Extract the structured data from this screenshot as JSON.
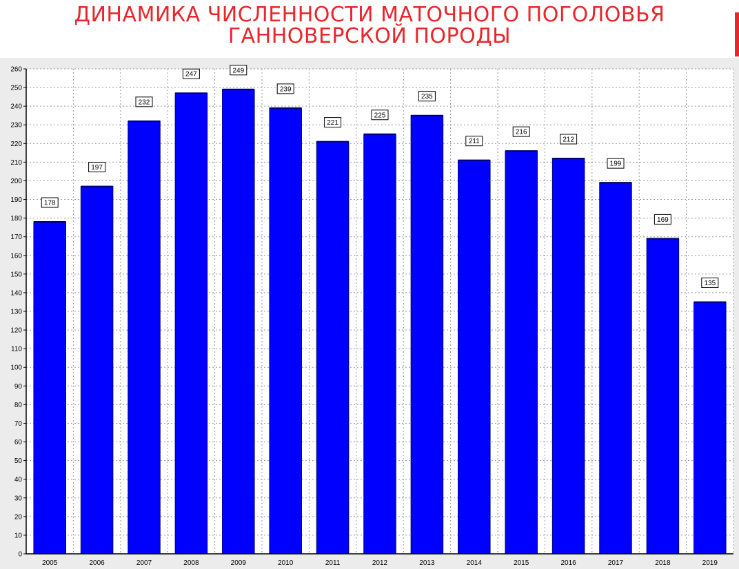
{
  "slide": {
    "title_line1": "ДИНАМИКА ЧИСЛЕННОСТИ МАТОЧНОГО ПОГОЛОВЬЯ",
    "title_line2": "ГАННОВЕРСКОЙ ПОРОДЫ"
  },
  "colors": {
    "title": "#e8262b",
    "bar": "#0000ff",
    "bar_outline": "#00007a",
    "plot_background": "#ffffff",
    "panel_background": "#ececec",
    "grid": "#9a9a9a"
  },
  "chart_data": {
    "type": "bar",
    "title": "",
    "xlabel": "",
    "ylabel": "",
    "categories": [
      "2005",
      "2006",
      "2007",
      "2008",
      "2009",
      "2010",
      "2011",
      "2012",
      "2013",
      "2014",
      "2015",
      "2016",
      "2017",
      "2018",
      "2019"
    ],
    "values": [
      178,
      197,
      232,
      247,
      249,
      239,
      221,
      225,
      235,
      211,
      216,
      212,
      199,
      169,
      135
    ],
    "ylim": [
      0,
      260
    ],
    "ytick_step": 10,
    "grid": true,
    "grid_style": "dashed",
    "data_labels": true,
    "legend": "none"
  }
}
